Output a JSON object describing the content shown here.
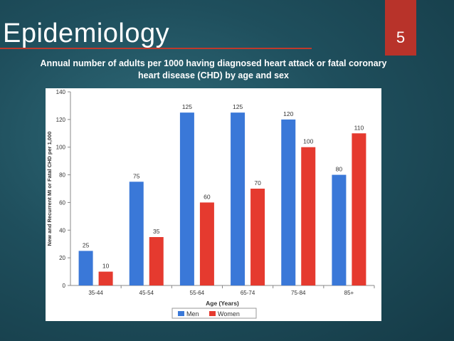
{
  "slide": {
    "title": "Epidemiology",
    "number": "5",
    "subtitle": "Annual number of adults per 1000 having diagnosed heart attack or fatal coronary heart disease (CHD) by age and sex"
  },
  "colors": {
    "men": "#3a78d8",
    "women": "#e53a2f",
    "accent": "#b8332a"
  },
  "chart_data": {
    "type": "bar",
    "categories": [
      "35-44",
      "45-54",
      "55-64",
      "65-74",
      "75-84",
      "85+"
    ],
    "series": [
      {
        "name": "Men",
        "values": [
          25,
          75,
          125,
          125,
          120,
          80
        ]
      },
      {
        "name": "Women",
        "values": [
          10,
          35,
          60,
          70,
          100,
          110
        ]
      }
    ],
    "xlabel": "Age (Years)",
    "ylabel": "New and Recurrent MI or Fatal CHD per 1,000",
    "ylim": [
      0,
      140
    ],
    "yticks": [
      0,
      20,
      40,
      60,
      80,
      100,
      120,
      140
    ],
    "legend": "bottom-center",
    "grid": false
  }
}
